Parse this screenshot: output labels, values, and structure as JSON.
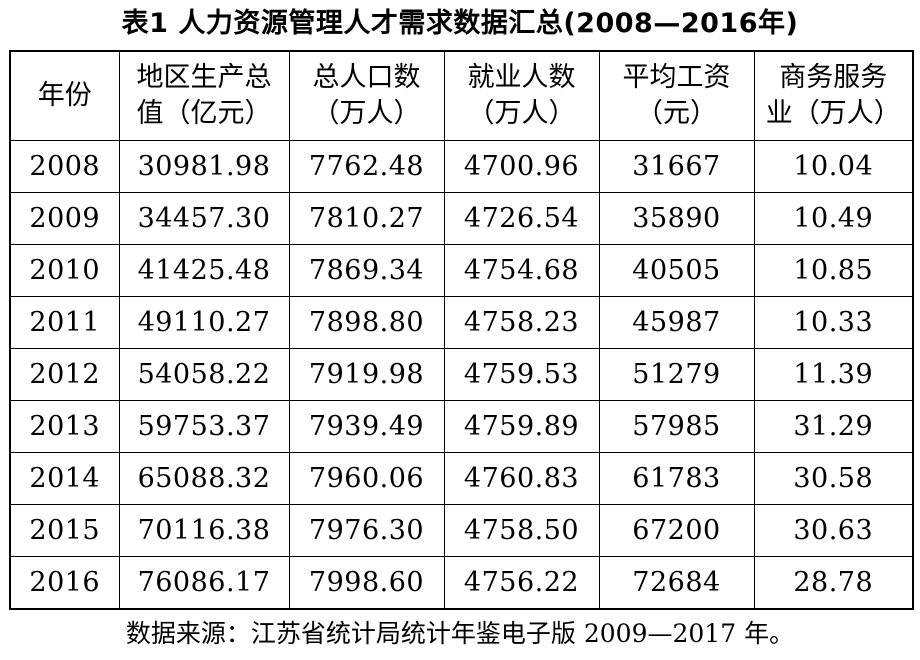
{
  "title": "表1  人力资源管理人才需求数据汇总(2008—2016年)",
  "table": {
    "headers": [
      [
        "年份"
      ],
      [
        "地区生产总",
        "值（亿元）"
      ],
      [
        "总人口数",
        "（万人）"
      ],
      [
        "就业人数",
        "（万人）"
      ],
      [
        "平均工资",
        "（元）"
      ],
      [
        "商务服务",
        "业（万人）"
      ]
    ],
    "rows": [
      [
        "2008",
        "30981.98",
        "7762.48",
        "4700.96",
        "31667",
        "10.04"
      ],
      [
        "2009",
        "34457.30",
        "7810.27",
        "4726.54",
        "35890",
        "10.49"
      ],
      [
        "2010",
        "41425.48",
        "7869.34",
        "4754.68",
        "40505",
        "10.85"
      ],
      [
        "2011",
        "49110.27",
        "7898.80",
        "4758.23",
        "45987",
        "10.33"
      ],
      [
        "2012",
        "54058.22",
        "7919.98",
        "4759.53",
        "51279",
        "11.39"
      ],
      [
        "2013",
        "59753.37",
        "7939.49",
        "4759.89",
        "57985",
        "31.29"
      ],
      [
        "2014",
        "65088.32",
        "7960.06",
        "4760.83",
        "61783",
        "30.58"
      ],
      [
        "2015",
        "70116.38",
        "7976.30",
        "4758.50",
        "67200",
        "30.63"
      ],
      [
        "2016",
        "76086.17",
        "7998.60",
        "4756.22",
        "72684",
        "28.78"
      ]
    ]
  },
  "source": "数据来源：江苏省统计局统计年鉴电子版 2009—2017 年。"
}
